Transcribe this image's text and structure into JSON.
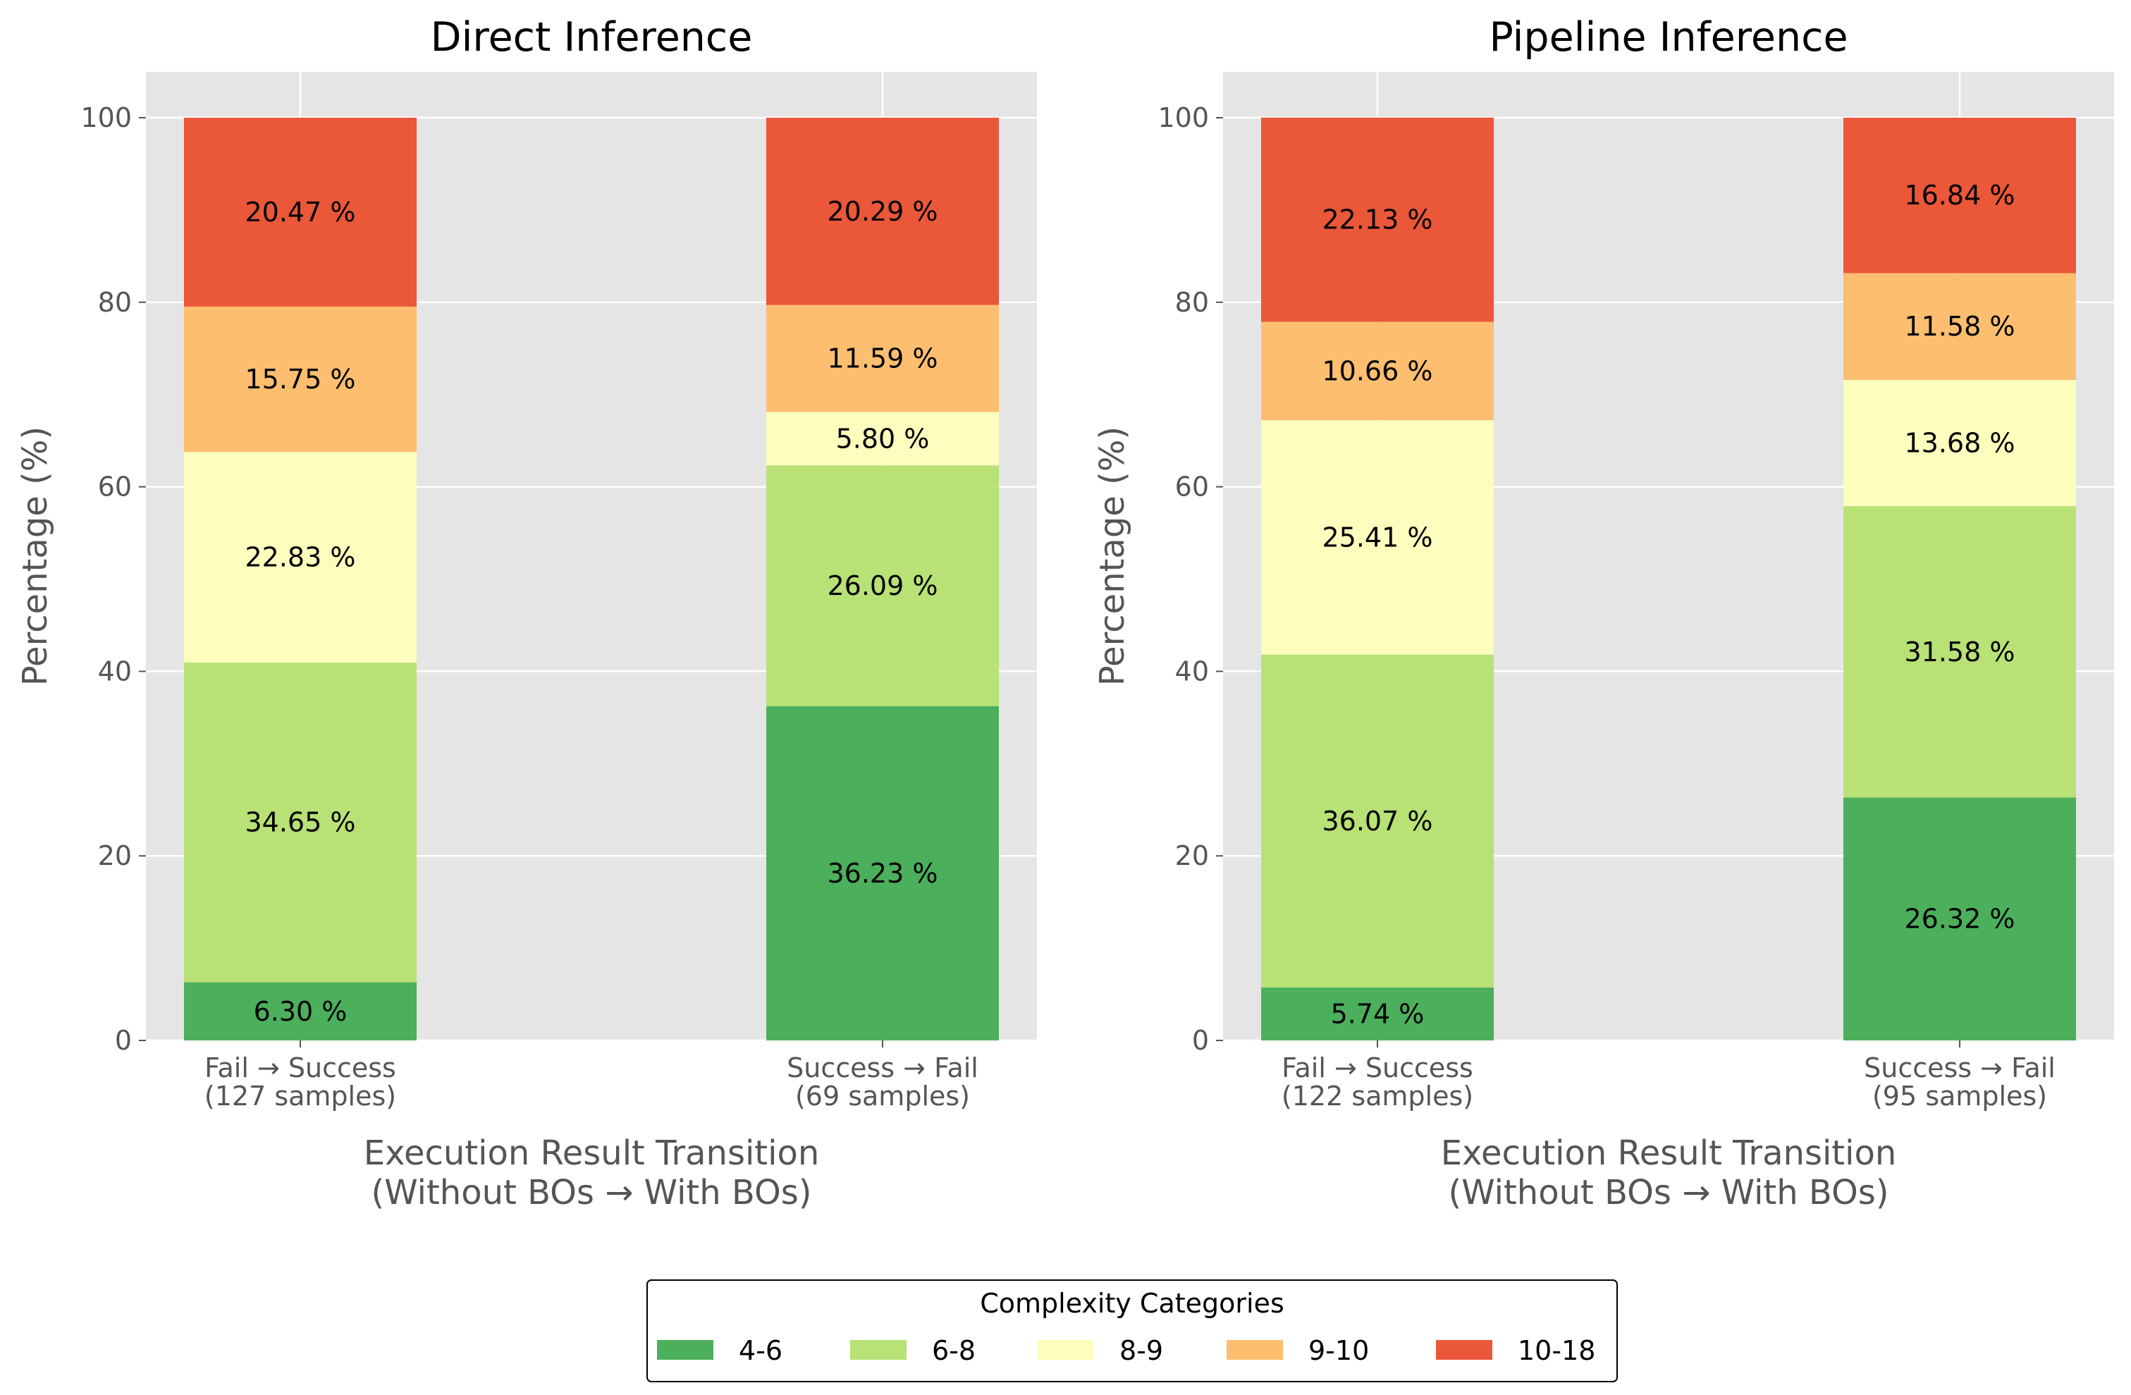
{
  "chart_data": [
    {
      "type": "bar",
      "stacked": true,
      "title": "Direct Inference",
      "xlabel": [
        "Execution Result Transition",
        "(Without BOs → With BOs)"
      ],
      "ylabel": "Percentage (%)",
      "ylim": [
        0,
        100
      ],
      "yticks": [
        0,
        20,
        40,
        60,
        80,
        100
      ],
      "grid": true,
      "categories": [
        [
          "Fail → Success",
          "(127 samples)"
        ],
        [
          "Success → Fail",
          "(69 samples)"
        ]
      ],
      "series": [
        {
          "name": "4-6",
          "values": [
            6.3,
            36.23
          ],
          "labels": [
            "6.30 %",
            "36.23 %"
          ]
        },
        {
          "name": "6-8",
          "values": [
            34.65,
            26.09
          ],
          "labels": [
            "34.65 %",
            "26.09 %"
          ]
        },
        {
          "name": "8-9",
          "values": [
            22.83,
            5.8
          ],
          "labels": [
            "22.83 %",
            "5.80 %"
          ]
        },
        {
          "name": "9-10",
          "values": [
            15.75,
            11.59
          ],
          "labels": [
            "15.75 %",
            "11.59 %"
          ]
        },
        {
          "name": "10-18",
          "values": [
            20.47,
            20.29
          ],
          "labels": [
            "20.47 %",
            "20.29 %"
          ]
        }
      ]
    },
    {
      "type": "bar",
      "stacked": true,
      "title": "Pipeline Inference",
      "xlabel": [
        "Execution Result Transition",
        "(Without BOs → With BOs)"
      ],
      "ylabel": "Percentage (%)",
      "ylim": [
        0,
        100
      ],
      "yticks": [
        0,
        20,
        40,
        60,
        80,
        100
      ],
      "grid": true,
      "categories": [
        [
          "Fail → Success",
          "(122 samples)"
        ],
        [
          "Success → Fail",
          "(95 samples)"
        ]
      ],
      "series": [
        {
          "name": "4-6",
          "values": [
            5.74,
            26.32
          ],
          "labels": [
            "5.74 %",
            "26.32 %"
          ]
        },
        {
          "name": "6-8",
          "values": [
            36.07,
            31.58
          ],
          "labels": [
            "36.07 %",
            "31.58 %"
          ]
        },
        {
          "name": "8-9",
          "values": [
            25.41,
            13.68
          ],
          "labels": [
            "25.41 %",
            "13.68 %"
          ]
        },
        {
          "name": "9-10",
          "values": [
            10.66,
            11.58
          ],
          "labels": [
            "10.66 %",
            "11.58 %"
          ]
        },
        {
          "name": "10-18",
          "values": [
            22.13,
            16.84
          ],
          "labels": [
            "22.13 %",
            "16.84 %"
          ]
        }
      ]
    }
  ],
  "legend": {
    "title": "Complexity Categories",
    "placement": "bottom-center",
    "items": [
      {
        "label": "4-6",
        "color": "#4caf5c"
      },
      {
        "label": "6-8",
        "color": "#b8e176"
      },
      {
        "label": "8-9",
        "color": "#fdfdbd"
      },
      {
        "label": "9-10",
        "color": "#fdbe6f"
      },
      {
        "label": "10-18",
        "color": "#ea5739"
      }
    ]
  },
  "colors": {
    "plot_background": "#e5e5e5",
    "grid": "#ffffff",
    "tick_text": "#555555"
  }
}
